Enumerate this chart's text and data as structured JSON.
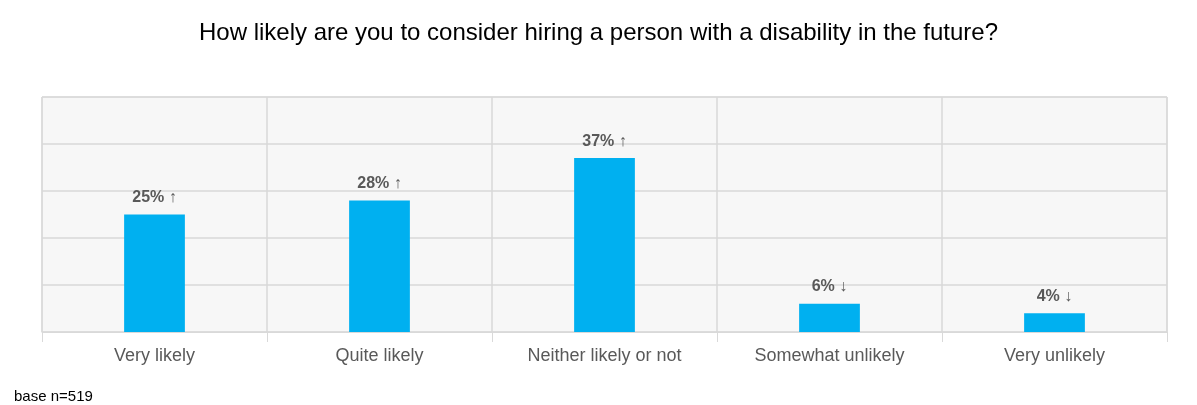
{
  "chart_data": {
    "type": "bar",
    "title": "How likely are you to consider hiring a person with a disability in the future?",
    "categories": [
      "Very likely",
      "Quite likely",
      "Neither likely or not",
      "Somewhat unlikely",
      "Very unlikely"
    ],
    "values": [
      25,
      28,
      37,
      6,
      4
    ],
    "value_labels": [
      "25% ↑",
      "28% ↑",
      "37% ↑",
      "6% ↓",
      "4% ↓"
    ],
    "color": "#00b0f0",
    "ylim": [
      0,
      50
    ],
    "yticks": [
      {
        "value": 0,
        "label": null
      },
      {
        "value": 10,
        "label": null
      },
      {
        "value": 20,
        "label": null
      },
      {
        "value": 30,
        "label": null
      },
      {
        "value": 40,
        "label": null
      },
      {
        "value": 50,
        "label": null
      }
    ],
    "tick_labels": "x",
    "grid": true,
    "annotations": [
      "base n=519"
    ]
  }
}
